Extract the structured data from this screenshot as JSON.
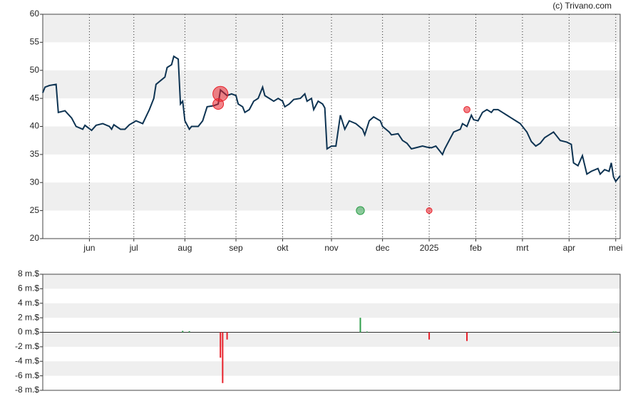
{
  "source": "(c) Trivano.com",
  "chart_data": [
    {
      "type": "line",
      "xlim": [
        0,
        260
      ],
      "xticks": [
        {
          "value": 21,
          "label": "jun"
        },
        {
          "value": 41,
          "label": "jul"
        },
        {
          "value": 64,
          "label": "aug"
        },
        {
          "value": 87,
          "label": "sep"
        },
        {
          "value": 108,
          "label": "okt"
        },
        {
          "value": 130,
          "label": "nov"
        },
        {
          "value": 153,
          "label": "dec"
        },
        {
          "value": 174,
          "label": "2025"
        },
        {
          "value": 195,
          "label": "feb"
        },
        {
          "value": 216,
          "label": "mrt"
        },
        {
          "value": 237,
          "label": "apr"
        },
        {
          "value": 258,
          "label": "mei"
        }
      ],
      "ylim": [
        20,
        60
      ],
      "yticks": [
        20,
        25,
        30,
        35,
        40,
        45,
        50,
        55,
        60
      ],
      "grid": true,
      "series": [
        {
          "type": "line",
          "color": "#0d3352",
          "x": [
            0,
            1,
            3,
            6,
            7,
            10,
            13,
            15,
            18,
            19,
            22,
            24,
            27,
            30,
            31,
            32,
            35,
            37,
            39,
            42,
            45,
            48,
            50,
            51,
            55,
            56,
            58,
            59,
            61,
            62,
            63,
            64,
            66,
            67,
            70,
            72,
            74,
            77,
            79,
            80,
            83,
            85,
            87,
            88,
            90,
            91,
            93,
            95,
            97,
            99,
            100,
            102,
            104,
            106,
            108,
            109,
            111,
            113,
            116,
            118,
            119,
            121,
            122,
            124,
            126,
            127,
            128,
            130,
            132,
            134,
            136,
            138,
            141,
            144,
            145,
            147,
            149,
            152,
            153,
            156,
            157,
            160,
            162,
            164,
            166,
            169,
            171,
            173,
            175,
            177,
            180,
            181,
            183,
            185,
            188,
            189,
            191,
            193,
            194,
            196,
            198,
            200,
            202,
            203,
            205,
            207,
            209,
            211,
            213,
            215,
            217,
            218,
            220,
            222,
            224,
            226,
            228,
            230,
            231,
            233,
            236,
            238,
            239,
            241,
            243,
            245,
            247,
            250,
            251,
            253,
            255,
            256,
            257,
            258,
            260
          ],
          "values": [
            46,
            47,
            47.3,
            47.5,
            42.5,
            42.8,
            41.5,
            40,
            39.5,
            40.2,
            39.3,
            40.2,
            40.5,
            40,
            39.5,
            40.3,
            39.5,
            39.5,
            40.3,
            41,
            40.5,
            43,
            45,
            47.5,
            48.8,
            50.5,
            51,
            52.5,
            52,
            44,
            44.5,
            41,
            39.5,
            40,
            40,
            41,
            43.5,
            43.7,
            44,
            46.5,
            45.5,
            45.8,
            45.5,
            44,
            43.5,
            42.5,
            43,
            44.5,
            45,
            47,
            45.5,
            45,
            44.5,
            45,
            44.5,
            43.5,
            44,
            44.8,
            45,
            45.8,
            44.5,
            45,
            43,
            44.5,
            44,
            43.3,
            36,
            36.5,
            36.5,
            42,
            39.5,
            41,
            40.5,
            39.5,
            38.5,
            41,
            41.7,
            41,
            40,
            39,
            38.5,
            38.7,
            37.5,
            37,
            36,
            36.3,
            36.5,
            36.3,
            36.2,
            36.5,
            35,
            36,
            37.5,
            39,
            39.5,
            40.5,
            40,
            42,
            41.2,
            41,
            42.5,
            43,
            42.5,
            43,
            43,
            42.5,
            42,
            41.5,
            41,
            40.5,
            39.5,
            39,
            37.3,
            36.5,
            37,
            38,
            38.5,
            39,
            38.5,
            37.5,
            37.2,
            36.8,
            33.5,
            33,
            34.8,
            31.5,
            32,
            32.5,
            31.5,
            32.3,
            32,
            33.5,
            31,
            30.2,
            31.2
          ]
        },
        {
          "type": "bubble",
          "color": "#e8202a",
          "x": [
            80,
            79,
            191,
            174
          ],
          "values": [
            45.8,
            44,
            43,
            25
          ],
          "sizes": [
            7,
            3.5,
            1.2,
            1
          ]
        },
        {
          "type": "bubble",
          "color": "#2e9e4a",
          "x": [
            143
          ],
          "values": [
            25
          ],
          "sizes": [
            2
          ]
        }
      ]
    },
    {
      "type": "bar",
      "xlim": [
        0,
        260
      ],
      "ylim": [
        -8,
        8
      ],
      "yticks": [
        {
          "value": -8,
          "label": "-8 m.$"
        },
        {
          "value": -6,
          "label": "-6 m.$"
        },
        {
          "value": -4,
          "label": "-4 m.$"
        },
        {
          "value": -2,
          "label": "-2 m.$"
        },
        {
          "value": 0,
          "label": "0 m.$"
        },
        {
          "value": 2,
          "label": "2 m.$"
        },
        {
          "value": 4,
          "label": "4 m.$"
        },
        {
          "value": 6,
          "label": "6 m.$"
        },
        {
          "value": 8,
          "label": "8 m.$"
        }
      ],
      "grid": true,
      "pos_color": "#2e9e4a",
      "neg_color": "#e8202a",
      "x": [
        63,
        66,
        80,
        81,
        83,
        143,
        146,
        174,
        191,
        257,
        258
      ],
      "values": [
        0.2,
        0.15,
        -3.5,
        -7,
        -1,
        2,
        0.1,
        -1,
        -1.2,
        0.1,
        0.1
      ]
    }
  ]
}
